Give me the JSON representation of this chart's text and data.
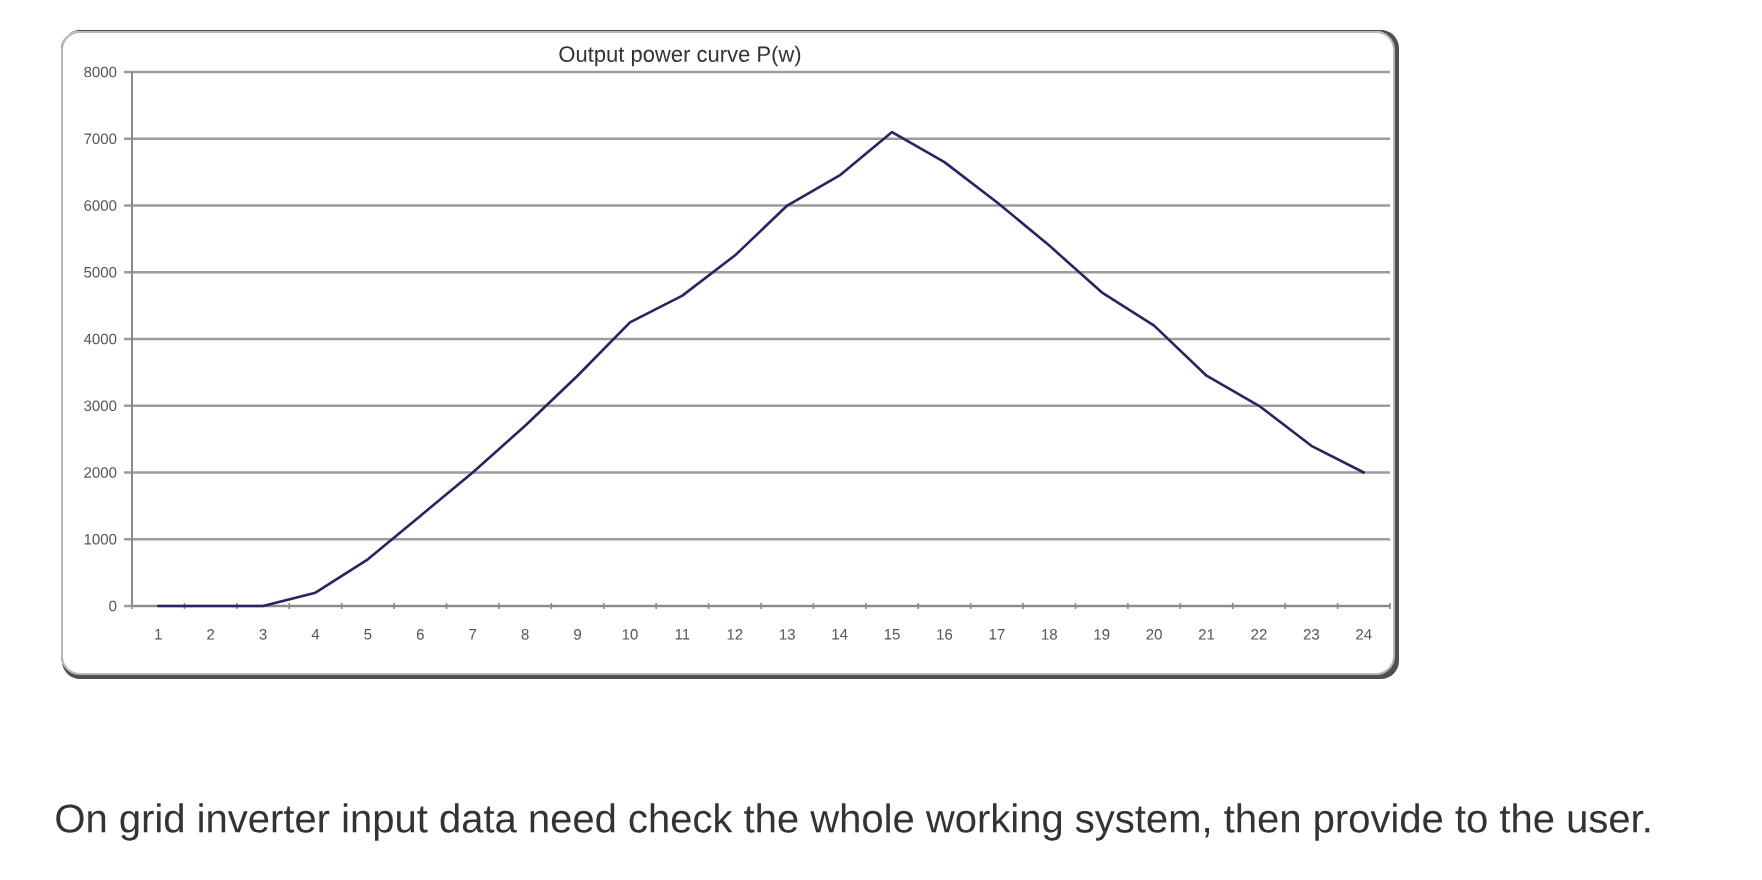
{
  "chart_data": {
    "type": "line",
    "title": "Output power curve  P(w)",
    "categories": [
      "1",
      "2",
      "3",
      "4",
      "5",
      "6",
      "7",
      "8",
      "9",
      "10",
      "11",
      "12",
      "13",
      "14",
      "15",
      "16",
      "17",
      "18",
      "19",
      "20",
      "21",
      "22",
      "23",
      "24"
    ],
    "series": [
      {
        "color": "#262660",
        "values": [
          0,
          0,
          0,
          200,
          700,
          1350,
          2000,
          2700,
          3450,
          4250,
          4650,
          5250,
          6000,
          6450,
          7100,
          6650,
          6050,
          5400,
          4700,
          4200,
          3450,
          3000,
          2400,
          2000
        ]
      }
    ],
    "ylim": [
      0,
      8000
    ],
    "yticks": [
      0,
      1000,
      2000,
      3000,
      4000,
      5000,
      6000,
      7000,
      8000
    ],
    "grid": "y",
    "line_style": "solid",
    "annotations": [
      "On grid inverter input data need check the whole working system, then provide to the user."
    ]
  }
}
